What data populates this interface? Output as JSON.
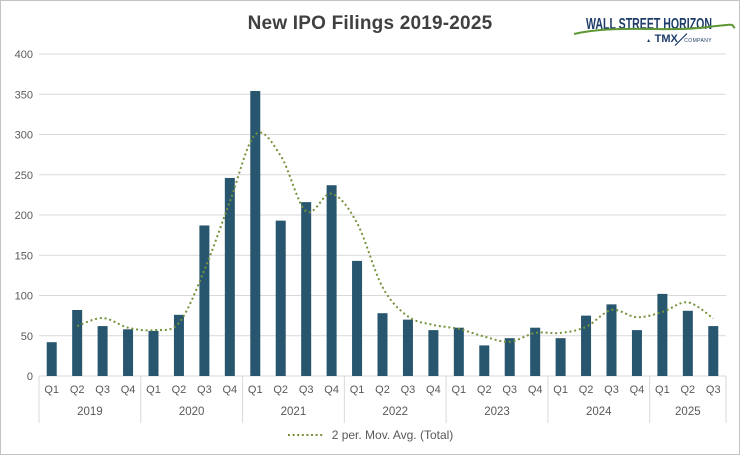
{
  "chart_data": {
    "type": "bar",
    "title": "New IPO Filings 2019-2025",
    "xlabel": "",
    "ylabel": "",
    "ylim": [
      0,
      400
    ],
    "ytick_step": 50,
    "grid": "horizontal",
    "legend_position": "bottom",
    "series_name": "Total",
    "years": [
      {
        "year": "2019",
        "quarters": [
          "Q1",
          "Q2",
          "Q3",
          "Q4"
        ],
        "values": [
          42,
          82,
          62,
          58
        ]
      },
      {
        "year": "2020",
        "quarters": [
          "Q1",
          "Q2",
          "Q3",
          "Q4"
        ],
        "values": [
          56,
          76,
          187,
          246
        ]
      },
      {
        "year": "2021",
        "quarters": [
          "Q1",
          "Q2",
          "Q3",
          "Q4"
        ],
        "values": [
          354,
          193,
          216,
          237
        ]
      },
      {
        "year": "2022",
        "quarters": [
          "Q1",
          "Q2",
          "Q3",
          "Q4"
        ],
        "values": [
          143,
          78,
          70,
          57
        ]
      },
      {
        "year": "2023",
        "quarters": [
          "Q1",
          "Q2",
          "Q3",
          "Q4"
        ],
        "values": [
          60,
          38,
          47,
          60
        ]
      },
      {
        "year": "2024",
        "quarters": [
          "Q1",
          "Q2",
          "Q3",
          "Q4"
        ],
        "values": [
          47,
          75,
          89,
          57
        ]
      },
      {
        "year": "2025",
        "quarters": [
          "Q1",
          "Q2",
          "Q3"
        ],
        "values": [
          102,
          81,
          62
        ]
      }
    ],
    "trendline": {
      "window": 2,
      "label": "2 per. Mov. Avg. (Total)",
      "values": [
        null,
        62,
        72,
        60,
        57,
        66,
        131.5,
        216.5,
        300,
        273.5,
        204.5,
        226.5,
        190,
        110.5,
        74,
        63.5,
        58.5,
        49,
        42.5,
        53.5,
        53.5,
        61,
        82,
        73,
        79.5,
        91.5,
        71.5
      ]
    },
    "colors": {
      "bar": "#27566e",
      "trendline": "#76923c",
      "gridline": "#d9d9d9",
      "axis_text": "#595959",
      "title_text": "#404040"
    }
  },
  "logo": {
    "brand": "WALL STREET HORIZON",
    "tagline_prefix": "▴",
    "tagline_brand": "TMX",
    "tagline_suffix": "COMPANY"
  }
}
